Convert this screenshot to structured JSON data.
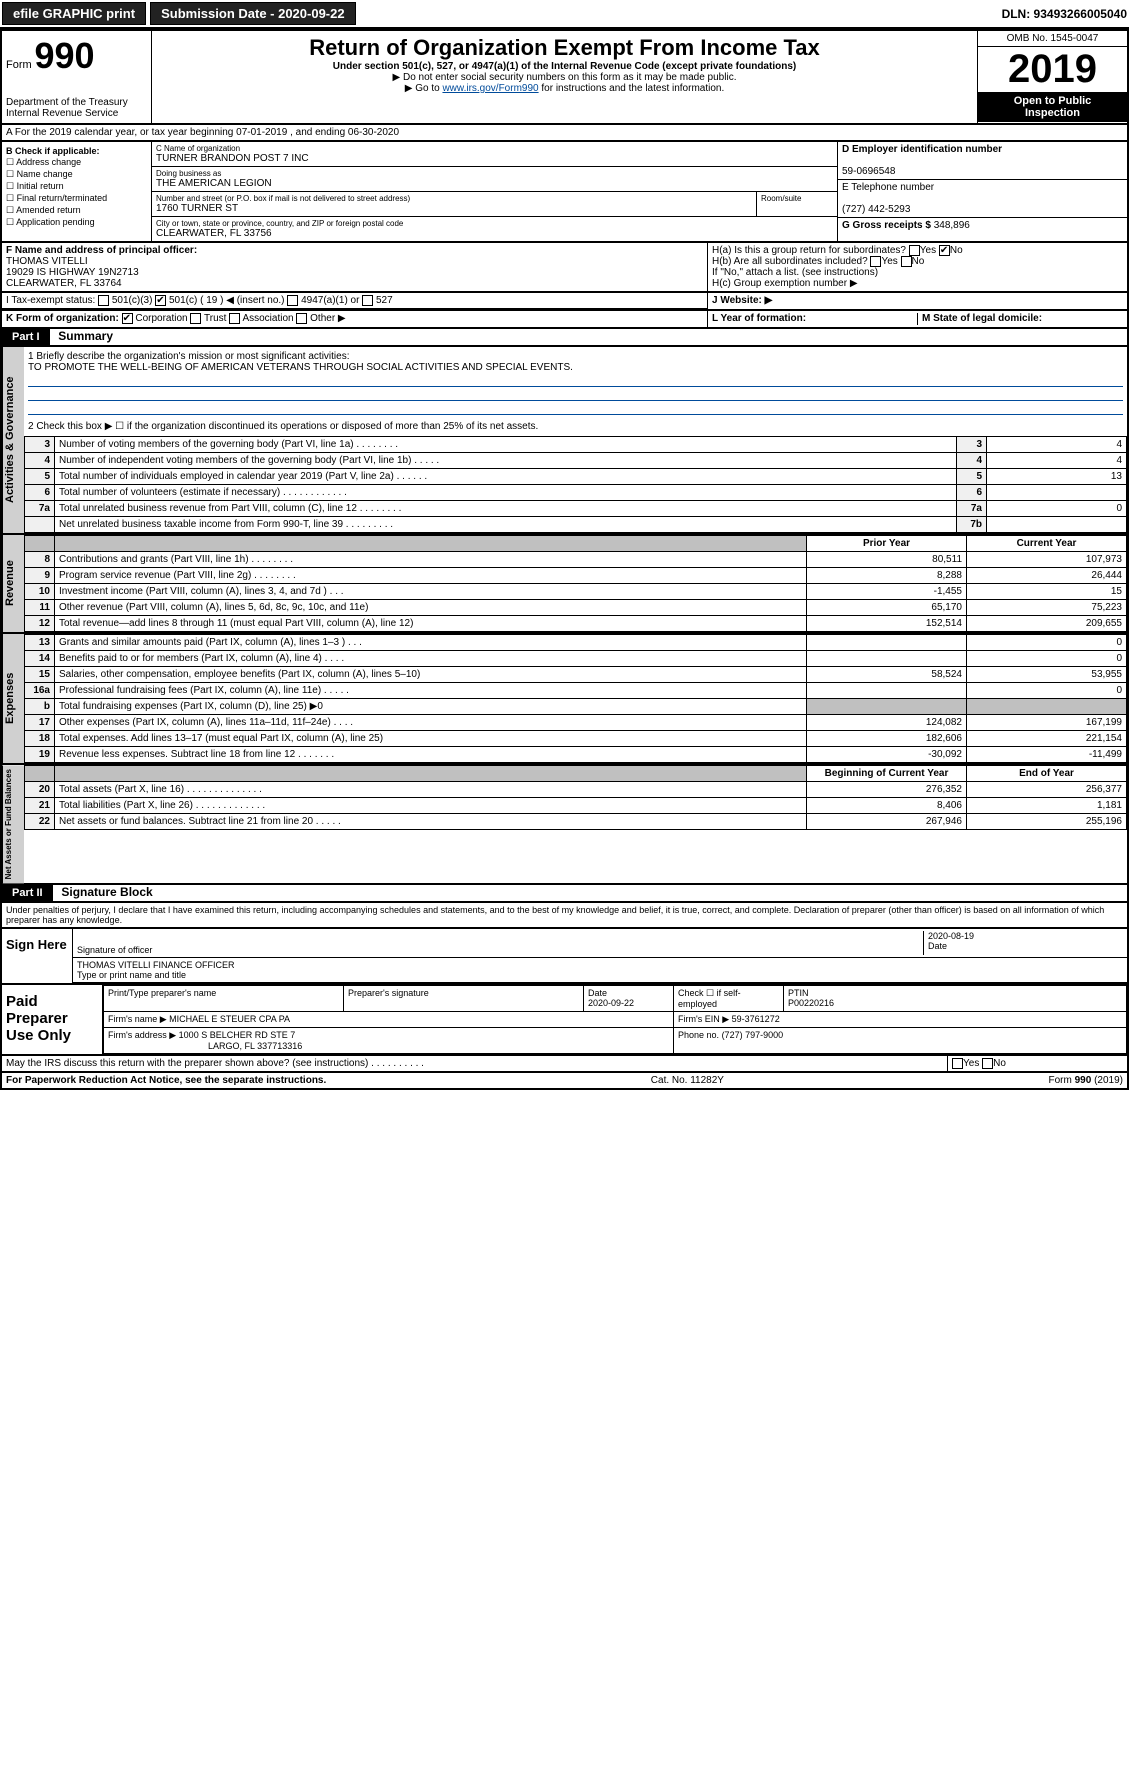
{
  "topbar": {
    "efile": "efile GRAPHIC print",
    "subdate_lbl": "Submission Date - 2020-09-22",
    "dln": "DLN: 93493266005040"
  },
  "header": {
    "form_prefix": "Form",
    "form_number": "990",
    "dept1": "Department of the Treasury",
    "dept2": "Internal Revenue Service",
    "title": "Return of Organization Exempt From Income Tax",
    "subtitle": "Under section 501(c), 527, or 4947(a)(1) of the Internal Revenue Code (except private foundations)",
    "note1": "▶ Do not enter social security numbers on this form as it may be made public.",
    "note2_pre": "▶ Go to ",
    "note2_link": "www.irs.gov/Form990",
    "note2_post": " for instructions and the latest information.",
    "omb": "OMB No. 1545-0047",
    "year": "2019",
    "inspect1": "Open to Public",
    "inspect2": "Inspection"
  },
  "rowA": "A For the 2019 calendar year, or tax year beginning 07-01-2019   , and ending 06-30-2020",
  "colB": {
    "title": "B Check if applicable:",
    "o1": "Address change",
    "o2": "Name change",
    "o3": "Initial return",
    "o4": "Final return/terminated",
    "o5": "Amended return",
    "o6": "Application pending"
  },
  "colC": {
    "name_lbl": "C Name of organization",
    "name": "TURNER BRANDON POST 7 INC",
    "dba_lbl": "Doing business as",
    "dba": "THE AMERICAN LEGION",
    "addr_lbl": "Number and street (or P.O. box if mail is not delivered to street address)",
    "addr": "1760 TURNER ST",
    "room_lbl": "Room/suite",
    "city_lbl": "City or town, state or province, country, and ZIP or foreign postal code",
    "city": "CLEARWATER, FL  33756"
  },
  "colD": {
    "lbl": "D Employer identification number",
    "val": "59-0696548"
  },
  "colE": {
    "lbl": "E Telephone number",
    "val": "(727) 442-5293"
  },
  "colG": {
    "lbl": "G Gross receipts $",
    "val": "348,896"
  },
  "rowF": {
    "lbl": "F Name and address of principal officer:",
    "l1": "THOMAS VITELLI",
    "l2": "19029 IS HIGHWAY 19N2713",
    "l3": "CLEARWATER, FL  33764"
  },
  "rowH": {
    "a": "H(a)  Is this a group return for subordinates?",
    "b": "H(b)  Are all subordinates included?",
    "note": "If \"No,\" attach a list. (see instructions)",
    "c": "H(c)  Group exemption number ▶",
    "yes": "Yes",
    "no": "No"
  },
  "rowI": {
    "lbl": "I  Tax-exempt status:",
    "o1": "501(c)(3)",
    "o2a": "501(c) ( 19 ) ◀ (insert no.)",
    "o3": "4947(a)(1) or",
    "o4": "527"
  },
  "rowJ": {
    "lbl": "J  Website: ▶"
  },
  "rowK": {
    "lbl": "K Form of organization:",
    "o1": "Corporation",
    "o2": "Trust",
    "o3": "Association",
    "o4": "Other ▶"
  },
  "rowL": {
    "lbl": "L Year of formation:"
  },
  "rowM": {
    "lbl": "M State of legal domicile:"
  },
  "p1": {
    "hdr": "Part I",
    "title": "Summary",
    "q1": "1  Briefly describe the organization's mission or most significant activities:",
    "mission": "TO PROMOTE THE WELL-BEING OF AMERICAN VETERANS THROUGH SOCIAL ACTIVITIES AND SPECIAL EVENTS.",
    "q2": "2   Check this box ▶ ☐  if the organization discontinued its operations or disposed of more than 25% of its net assets.",
    "rows_gov": [
      {
        "n": "3",
        "d": "Number of voting members of the governing body (Part VI, line 1a)  .   .   .   .   .   .   .   .",
        "rn": "3",
        "v": "4"
      },
      {
        "n": "4",
        "d": "Number of independent voting members of the governing body (Part VI, line 1b)  .   .   .   .   .",
        "rn": "4",
        "v": "4"
      },
      {
        "n": "5",
        "d": "Total number of individuals employed in calendar year 2019 (Part V, line 2a)  .   .   .   .   .   .",
        "rn": "5",
        "v": "13"
      },
      {
        "n": "6",
        "d": "Total number of volunteers (estimate if necessary)  .   .   .   .   .   .   .   .   .   .   .   .",
        "rn": "6",
        "v": ""
      },
      {
        "n": "7a",
        "d": "Total unrelated business revenue from Part VIII, column (C), line 12  .   .   .   .   .   .   .   .",
        "rn": "7a",
        "v": "0"
      },
      {
        "n": "",
        "d": "Net unrelated business taxable income from Form 990-T, line 39  .   .   .   .   .   .   .   .   .",
        "rn": "7b",
        "v": ""
      }
    ],
    "col_prior": "Prior Year",
    "col_current": "Current Year",
    "rows_rev": [
      {
        "n": "8",
        "d": "Contributions and grants (Part VIII, line 1h)  .   .   .   .   .   .   .   .",
        "p": "80,511",
        "c": "107,973"
      },
      {
        "n": "9",
        "d": "Program service revenue (Part VIII, line 2g)  .   .   .   .   .   .   .   .",
        "p": "8,288",
        "c": "26,444"
      },
      {
        "n": "10",
        "d": "Investment income (Part VIII, column (A), lines 3, 4, and 7d )  .   .   .",
        "p": "-1,455",
        "c": "15"
      },
      {
        "n": "11",
        "d": "Other revenue (Part VIII, column (A), lines 5, 6d, 8c, 9c, 10c, and 11e)",
        "p": "65,170",
        "c": "75,223"
      },
      {
        "n": "12",
        "d": "Total revenue—add lines 8 through 11 (must equal Part VIII, column (A), line 12)",
        "p": "152,514",
        "c": "209,655"
      }
    ],
    "rows_exp": [
      {
        "n": "13",
        "d": "Grants and similar amounts paid (Part IX, column (A), lines 1–3 )  .   .   .",
        "p": "",
        "c": "0"
      },
      {
        "n": "14",
        "d": "Benefits paid to or for members (Part IX, column (A), line 4)  .   .   .   .",
        "p": "",
        "c": "0"
      },
      {
        "n": "15",
        "d": "Salaries, other compensation, employee benefits (Part IX, column (A), lines 5–10)",
        "p": "58,524",
        "c": "53,955"
      },
      {
        "n": "16a",
        "d": "Professional fundraising fees (Part IX, column (A), line 11e)  .   .   .   .   .",
        "p": "",
        "c": "0"
      },
      {
        "n": "b",
        "d": "Total fundraising expenses (Part IX, column (D), line 25) ▶0",
        "p": "shade",
        "c": "shade"
      },
      {
        "n": "17",
        "d": "Other expenses (Part IX, column (A), lines 11a–11d, 11f–24e)  .   .   .   .",
        "p": "124,082",
        "c": "167,199"
      },
      {
        "n": "18",
        "d": "Total expenses. Add lines 13–17 (must equal Part IX, column (A), line 25)",
        "p": "182,606",
        "c": "221,154"
      },
      {
        "n": "19",
        "d": "Revenue less expenses. Subtract line 18 from line 12  .   .   .   .   .   .   .",
        "p": "-30,092",
        "c": "-11,499"
      }
    ],
    "col_begin": "Beginning of Current Year",
    "col_end": "End of Year",
    "rows_net": [
      {
        "n": "20",
        "d": "Total assets (Part X, line 16)  .   .   .   .   .   .   .   .   .   .   .   .   .   .",
        "p": "276,352",
        "c": "256,377"
      },
      {
        "n": "21",
        "d": "Total liabilities (Part X, line 26)  .   .   .   .   .   .   .   .   .   .   .   .   .",
        "p": "8,406",
        "c": "1,181"
      },
      {
        "n": "22",
        "d": "Net assets or fund balances. Subtract line 21 from line 20  .   .   .   .   .",
        "p": "267,946",
        "c": "255,196"
      }
    ],
    "vlabels": {
      "gov": "Activities & Governance",
      "rev": "Revenue",
      "exp": "Expenses",
      "net": "Net Assets or Fund Balances"
    }
  },
  "p2": {
    "hdr": "Part II",
    "title": "Signature Block",
    "declaration": "Under penalties of perjury, I declare that I have examined this return, including accompanying schedules and statements, and to the best of my knowledge and belief, it is true, correct, and complete. Declaration of preparer (other than officer) is based on all information of which preparer has any knowledge."
  },
  "sign": {
    "here": "Sign Here",
    "sig_lbl": "Signature of officer",
    "date": "2020-08-19",
    "date_lbl": "Date",
    "name": "THOMAS VITELLI  FINANCE OFFICER",
    "name_lbl": "Type or print name and title"
  },
  "prep": {
    "title": "Paid Preparer Use Only",
    "c1": "Print/Type preparer's name",
    "c2": "Preparer's signature",
    "c3": "Date",
    "c3v": "2020-09-22",
    "c4": "Check ☐ if self-employed",
    "c5": "PTIN",
    "c5v": "P00220216",
    "firm_lbl": "Firm's name    ▶",
    "firm": "MICHAEL E STEUER CPA PA",
    "ein_lbl": "Firm's EIN ▶",
    "ein": "59-3761272",
    "addr_lbl": "Firm's address ▶",
    "addr1": "1000 S BELCHER RD STE 7",
    "addr2": "LARGO, FL  337713316",
    "phone_lbl": "Phone no.",
    "phone": "(727) 797-9000"
  },
  "discuss": {
    "q": "May the IRS discuss this return with the preparer shown above? (see instructions)  .   .   .   .   .   .   .   .   .   .",
    "yes": "Yes",
    "no": "No"
  },
  "footer": {
    "l": "For Paperwork Reduction Act Notice, see the separate instructions.",
    "c": "Cat. No. 11282Y",
    "r": "Form 990 (2019)"
  }
}
